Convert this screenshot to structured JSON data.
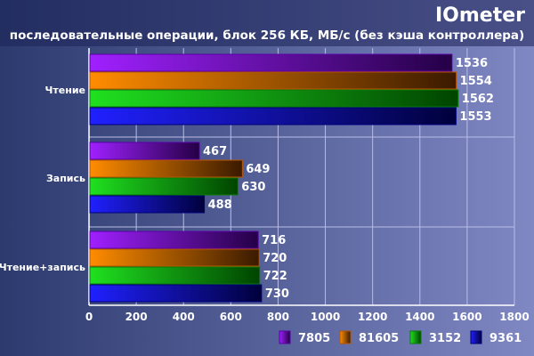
{
  "chart_data": {
    "type": "bar",
    "orientation": "horizontal",
    "title": "IOmeter",
    "subtitle": "последовательные операции, блок 256 КБ, МБ/с (без кэша контроллера)",
    "categories": [
      "Чтение",
      "Запись",
      "Чтение+запись"
    ],
    "series": [
      {
        "name": "7805",
        "values": [
          1536,
          467,
          716
        ]
      },
      {
        "name": "81605",
        "values": [
          1554,
          649,
          720
        ]
      },
      {
        "name": "3152",
        "values": [
          1562,
          630,
          722
        ]
      },
      {
        "name": "9361",
        "values": [
          1553,
          488,
          730
        ]
      }
    ],
    "xlim": [
      0,
      1800
    ],
    "xticks": [
      0,
      200,
      400,
      600,
      800,
      1000,
      1200,
      1400,
      1600,
      1800
    ],
    "grid": true,
    "legend_position": "bottom-right",
    "colors": {
      "series": [
        "#8A12F0",
        "#FF7A00",
        "#19D419",
        "#1A1AF5"
      ],
      "background_left": "#2C3A6E",
      "background_right": "#7E86C2",
      "title_bar": "#1B2356",
      "text": "#FFFFFF"
    }
  }
}
